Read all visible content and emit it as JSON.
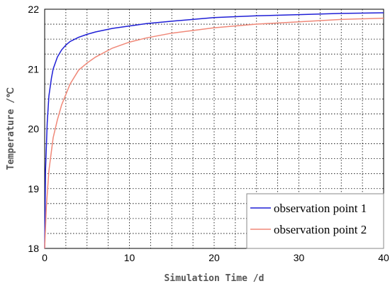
{
  "chart_data": {
    "type": "line",
    "xlabel": "Simulation Time /d",
    "ylabel": "Temperature /℃",
    "xlim": [
      0,
      40
    ],
    "ylim": [
      18,
      22
    ],
    "x_ticks": [
      "0",
      "10",
      "20",
      "30",
      "40"
    ],
    "y_ticks": [
      "18",
      "19",
      "20",
      "21",
      "22"
    ],
    "grid": true,
    "legend_position": "bottom-right",
    "series": [
      {
        "name": "observation point 1",
        "color": "#1f1fd6",
        "x": [
          0,
          0.1,
          0.3,
          0.5,
          0.8,
          1,
          1.5,
          2,
          2.5,
          3,
          4,
          5,
          6,
          8,
          10,
          12,
          15,
          20,
          25,
          30,
          35,
          40
        ],
        "y": [
          18.0,
          19.3,
          20.1,
          20.55,
          20.85,
          21.0,
          21.2,
          21.32,
          21.4,
          21.46,
          21.53,
          21.58,
          21.62,
          21.68,
          21.72,
          21.76,
          21.8,
          21.86,
          21.89,
          21.91,
          21.93,
          21.94
        ]
      },
      {
        "name": "observation point 2",
        "color": "#f08878",
        "x": [
          0,
          0.2,
          0.5,
          1,
          1.5,
          2,
          3,
          4,
          5,
          6,
          8,
          10,
          12,
          15,
          20,
          25,
          30,
          35,
          40
        ],
        "y": [
          18.0,
          18.7,
          19.3,
          19.85,
          20.15,
          20.4,
          20.75,
          20.98,
          21.1,
          21.2,
          21.35,
          21.45,
          21.52,
          21.6,
          21.69,
          21.75,
          21.79,
          21.83,
          21.85
        ]
      }
    ]
  }
}
